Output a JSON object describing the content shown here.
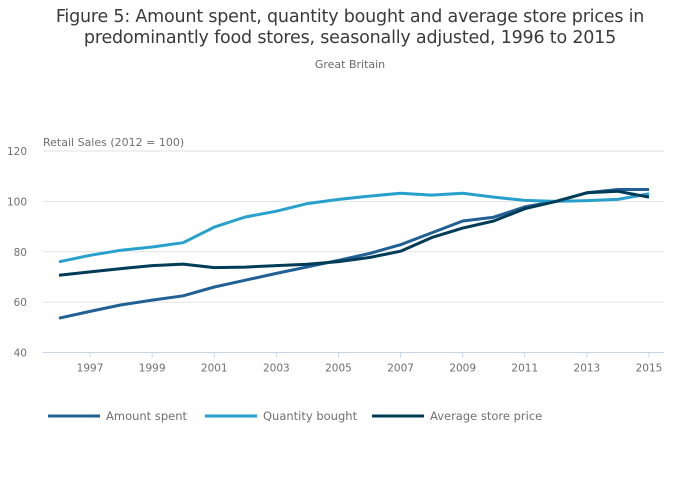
{
  "chart_data": {
    "type": "line",
    "title": "Figure 5: Amount spent, quantity bought and average store prices in predominantly food stores, seasonally adjusted, 1996 to 2015",
    "title_lines": [
      "Figure 5: Amount spent, quantity bought and average store prices in",
      "predominantly food stores, seasonally adjusted, 1996 to 2015"
    ],
    "subtitle": "Great Britain",
    "xlabel": "",
    "ylabel": "Retail Sales (2012 = 100)",
    "x": [
      1996,
      1997,
      1998,
      1999,
      2000,
      2001,
      2002,
      2003,
      2004,
      2005,
      2006,
      2007,
      2008,
      2009,
      2010,
      2011,
      2012,
      2013,
      2014,
      2015
    ],
    "xlim": [
      1995.5,
      2015.5
    ],
    "ylim": [
      40,
      120
    ],
    "yticks": [
      40,
      60,
      80,
      100,
      120
    ],
    "xticks": [
      1997,
      1999,
      2001,
      2003,
      2005,
      2007,
      2009,
      2011,
      2013,
      2015
    ],
    "grid": true,
    "legend_position": "bottom-left",
    "series": [
      {
        "name": "Amount spent",
        "color": "#206095",
        "values": [
          53.6,
          56.3,
          58.9,
          60.8,
          62.5,
          66.0,
          68.7,
          71.4,
          74.0,
          76.6,
          79.3,
          82.8,
          87.5,
          92.2,
          93.7,
          97.8,
          100.0,
          103.4,
          104.7,
          104.7
        ]
      },
      {
        "name": "Quantity bought",
        "color": "#27a0cc",
        "values": [
          76.0,
          78.6,
          80.6,
          81.9,
          83.6,
          89.8,
          93.8,
          96.1,
          99.1,
          100.8,
          102.1,
          103.2,
          102.5,
          103.2,
          101.7,
          100.4,
          100.0,
          100.3,
          100.8,
          103.0
        ]
      },
      {
        "name": "Average store price",
        "color": "#003c57",
        "values": [
          70.7,
          72.0,
          73.3,
          74.5,
          75.1,
          73.7,
          73.9,
          74.5,
          75.0,
          76.1,
          77.7,
          80.2,
          85.6,
          89.4,
          92.2,
          97.1,
          100.0,
          103.4,
          104.0,
          101.7
        ]
      }
    ]
  },
  "colors": {
    "gridline": "#e2e2e2",
    "axis_line": "#c8d4e4",
    "text": "#707070"
  }
}
